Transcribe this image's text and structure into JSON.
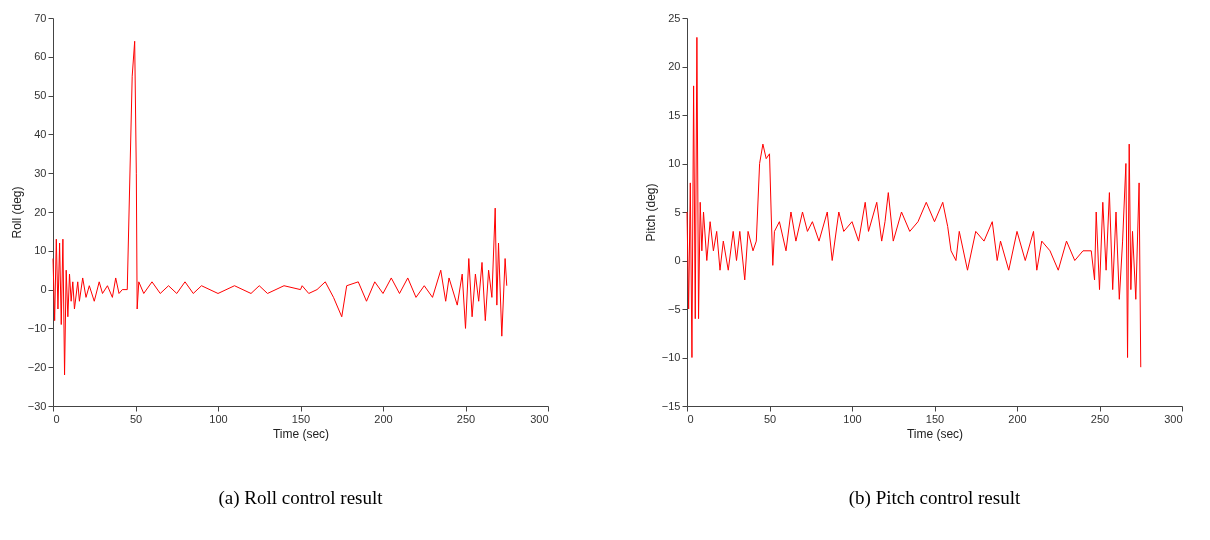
{
  "chart_data": [
    {
      "type": "line",
      "title": "(a) Roll control result",
      "xlabel": "Time (sec)",
      "ylabel": "Roll (deg)",
      "xlim": [
        0,
        300
      ],
      "xticks": [
        0,
        50,
        100,
        150,
        200,
        250,
        300
      ],
      "ylim": [
        -30,
        70
      ],
      "yticks": [
        -30,
        -20,
        -10,
        0,
        10,
        20,
        30,
        40,
        50,
        60,
        70
      ],
      "grid": false,
      "series": [
        {
          "color": "#ff0000",
          "x": [
            0,
            1,
            2,
            3,
            4,
            5,
            6,
            7,
            8,
            9,
            10,
            11,
            12,
            13,
            15,
            16,
            18,
            20,
            22,
            25,
            28,
            30,
            33,
            36,
            38,
            40,
            42,
            45,
            48,
            49.5,
            50.5,
            51,
            52,
            55,
            60,
            65,
            70,
            75,
            80,
            85,
            90,
            100,
            110,
            120,
            125,
            130,
            140,
            150,
            151,
            155,
            160,
            165,
            170,
            175,
            178,
            185,
            190,
            195,
            200,
            205,
            210,
            215,
            220,
            225,
            230,
            235,
            238,
            240,
            245,
            248,
            250,
            252,
            254,
            256,
            258,
            260,
            262,
            264,
            266,
            268,
            269,
            270,
            272,
            274,
            275
          ],
          "values": [
            8,
            -8,
            13,
            -5,
            12,
            -9,
            13,
            -22,
            5,
            -7,
            4,
            -3,
            2,
            -5,
            2,
            -3,
            3,
            -2,
            1,
            -3,
            2,
            -1,
            1,
            -2,
            3,
            -1,
            0,
            0,
            55,
            64,
            30,
            -5,
            2,
            -1,
            2,
            -1,
            1,
            -1,
            2,
            -1,
            1,
            -1,
            1,
            -1,
            1,
            -1,
            1,
            0,
            1,
            -1,
            0,
            2,
            -2,
            -7,
            1,
            2,
            -3,
            2,
            -1,
            3,
            -1,
            3,
            -2,
            1,
            -2,
            5,
            -3,
            3,
            -4,
            4,
            -10,
            8,
            -7,
            4,
            -3,
            7,
            -8,
            5,
            -2,
            21,
            -4,
            12,
            -12,
            8,
            1
          ]
        }
      ]
    },
    {
      "type": "line",
      "title": "(b) Pitch control result",
      "xlabel": "Time (sec)",
      "ylabel": "Pitch (deg)",
      "xlim": [
        0,
        300
      ],
      "xticks": [
        0,
        50,
        100,
        150,
        200,
        250,
        300
      ],
      "ylim": [
        -15,
        25
      ],
      "yticks": [
        -15,
        -10,
        -5,
        0,
        5,
        10,
        15,
        20,
        25
      ],
      "grid": false,
      "series": [
        {
          "color": "#ff0000",
          "x": [
            0,
            1,
            2,
            3,
            4,
            5,
            6,
            7,
            8,
            9,
            10,
            12,
            14,
            16,
            18,
            20,
            22,
            25,
            28,
            30,
            32,
            35,
            37,
            40,
            42,
            44,
            46,
            48,
            50,
            51,
            52,
            53,
            56,
            60,
            63,
            66,
            70,
            73,
            76,
            80,
            85,
            88,
            92,
            95,
            100,
            104,
            108,
            110,
            115,
            118,
            120,
            122,
            125,
            130,
            135,
            140,
            145,
            150,
            155,
            158,
            160,
            163,
            165,
            170,
            175,
            180,
            185,
            188,
            190,
            195,
            200,
            205,
            210,
            212,
            215,
            220,
            225,
            230,
            235,
            240,
            245,
            247,
            248,
            250,
            252,
            254,
            256,
            258,
            260,
            262,
            264,
            266,
            267,
            268,
            269,
            270,
            272,
            274,
            275
          ],
          "values": [
            5,
            -5,
            8,
            -10,
            18,
            -6,
            23,
            -6,
            6,
            1,
            5,
            0,
            4,
            1,
            3,
            -1,
            2,
            -1,
            3,
            0,
            3,
            -2,
            3,
            1,
            2,
            10,
            12,
            10.5,
            11,
            5,
            -0.5,
            3,
            4,
            1,
            5,
            2,
            5,
            3,
            4,
            2,
            5,
            0,
            5,
            3,
            4,
            2,
            6,
            3,
            6,
            2,
            4,
            7,
            2,
            5,
            3,
            4,
            6,
            4,
            6,
            3.5,
            1,
            0,
            3,
            -1,
            3,
            2,
            4,
            0,
            2,
            -1,
            3,
            0,
            3,
            -1,
            2,
            1,
            -1,
            2,
            0,
            1,
            1,
            -2,
            5,
            -3,
            6,
            -1,
            7,
            -3,
            5,
            -4,
            2,
            10,
            -10,
            12,
            -3,
            3,
            -4,
            8,
            -11
          ]
        }
      ]
    }
  ]
}
